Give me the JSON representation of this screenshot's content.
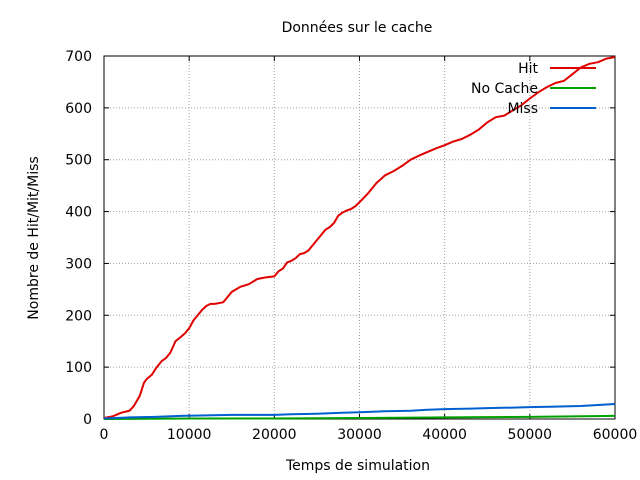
{
  "chart_data": {
    "type": "line",
    "title": "Données sur le cache",
    "xlabel": "Temps de simulation",
    "ylabel": "Nombre de Hit/Mit/Miss",
    "xlim": [
      0,
      60000
    ],
    "ylim": [
      0,
      700
    ],
    "xticks": [
      0,
      10000,
      20000,
      30000,
      40000,
      50000,
      60000
    ],
    "yticks": [
      0,
      100,
      200,
      300,
      400,
      500,
      600,
      700
    ],
    "grid": true,
    "legend_position": "top-right",
    "series": [
      {
        "name": "Hit",
        "color": "#e00000",
        "x": [
          0,
          1000,
          2000,
          3000,
          3500,
          4200,
          4700,
          5000,
          5600,
          6200,
          6800,
          7300,
          7800,
          8400,
          9000,
          9500,
          10000,
          10500,
          11000,
          11500,
          12000,
          12500,
          13000,
          14000,
          15000,
          15500,
          16000,
          17000,
          18000,
          19000,
          20000,
          20500,
          21000,
          21500,
          22000,
          22500,
          23000,
          23500,
          24000,
          25000,
          26000,
          26500,
          27000,
          27500,
          28000,
          28500,
          29000,
          29500,
          30000,
          31000,
          32000,
          33000,
          34000,
          35000,
          36000,
          37000,
          38000,
          39000,
          40000,
          41000,
          42000,
          43000,
          44000,
          45000,
          46000,
          47000,
          48000,
          49000,
          50000,
          51000,
          52000,
          53000,
          54000,
          55000,
          56000,
          57000,
          58000,
          59000,
          60000
        ],
        "values": [
          2,
          5,
          12,
          16,
          25,
          45,
          70,
          77,
          85,
          100,
          112,
          118,
          128,
          150,
          158,
          165,
          175,
          190,
          200,
          210,
          218,
          222,
          222,
          225,
          245,
          250,
          255,
          260,
          270,
          273,
          275,
          285,
          290,
          302,
          305,
          310,
          318,
          320,
          325,
          345,
          365,
          370,
          378,
          392,
          398,
          402,
          405,
          410,
          418,
          435,
          455,
          470,
          478,
          488,
          500,
          508,
          515,
          522,
          528,
          535,
          540,
          548,
          558,
          572,
          582,
          585,
          595,
          605,
          618,
          630,
          640,
          648,
          652,
          665,
          678,
          685,
          688,
          695,
          698
        ]
      },
      {
        "name": "No Cache",
        "color": "#00a000",
        "x": [
          0,
          10000,
          20000,
          30000,
          40000,
          50000,
          55000,
          60000
        ],
        "values": [
          0,
          1,
          1,
          2,
          3,
          4,
          5,
          6
        ]
      },
      {
        "name": "Miss",
        "color": "#0060d0",
        "x": [
          0,
          3000,
          6000,
          9000,
          12000,
          15000,
          20000,
          22000,
          25000,
          28000,
          30000,
          33000,
          36000,
          38000,
          40000,
          43000,
          45000,
          48000,
          50000,
          53000,
          56000,
          58000,
          60000
        ],
        "values": [
          1,
          3,
          4,
          6,
          7,
          8,
          8,
          9,
          10,
          12,
          13,
          15,
          16,
          18,
          19,
          20,
          21,
          22,
          23,
          24,
          25,
          27,
          29
        ]
      }
    ]
  }
}
